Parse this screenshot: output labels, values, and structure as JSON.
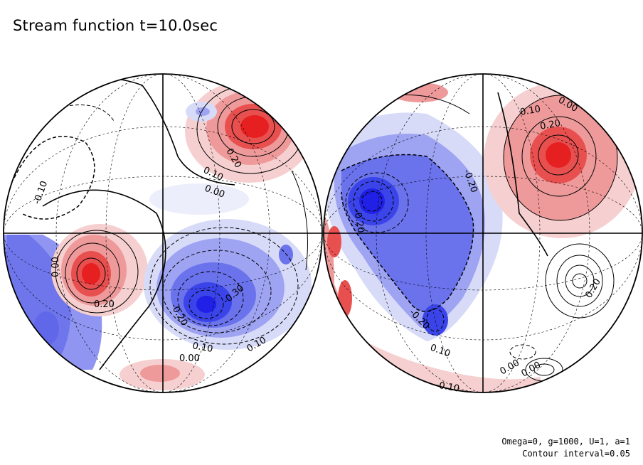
{
  "chart_data": {
    "type": "contour",
    "title": "Stream function t=10.0sec",
    "projection": "orthographic, two hemispheres",
    "contour_interval": 0.05,
    "colors": {
      "positive": "#e62020",
      "negative": "#2020e6",
      "zero": "#ffffff"
    },
    "hemispheres": [
      {
        "name": "left",
        "extrema": [
          {
            "sign": "positive",
            "value": 0.35
          },
          {
            "sign": "positive",
            "value": 0.3
          },
          {
            "sign": "negative",
            "value": -0.35
          },
          {
            "sign": "negative",
            "value": -0.1
          }
        ],
        "contour_labels": [
          "-0.10",
          "0.00",
          "0.10",
          "0.20",
          "-0.20",
          "0.10",
          "0.00",
          "-0.30",
          "0.20",
          "0.00",
          "0.10"
        ]
      },
      {
        "name": "right",
        "extrema": [
          {
            "sign": "positive",
            "value": 0.3
          },
          {
            "sign": "negative",
            "value": -0.35
          },
          {
            "sign": "negative",
            "value": -0.25
          },
          {
            "sign": "positive",
            "value": 0.1
          }
        ],
        "contour_labels": [
          "0.00",
          "0.10",
          "0.20",
          "-0.20",
          "-0.20",
          "-0.20",
          "0.20",
          "0.10",
          "0.00",
          "-0.10",
          "0.00"
        ]
      }
    ],
    "footer": [
      "Omega=0, g=1000, U=1, a=1",
      "Contour interval=0.05"
    ]
  }
}
